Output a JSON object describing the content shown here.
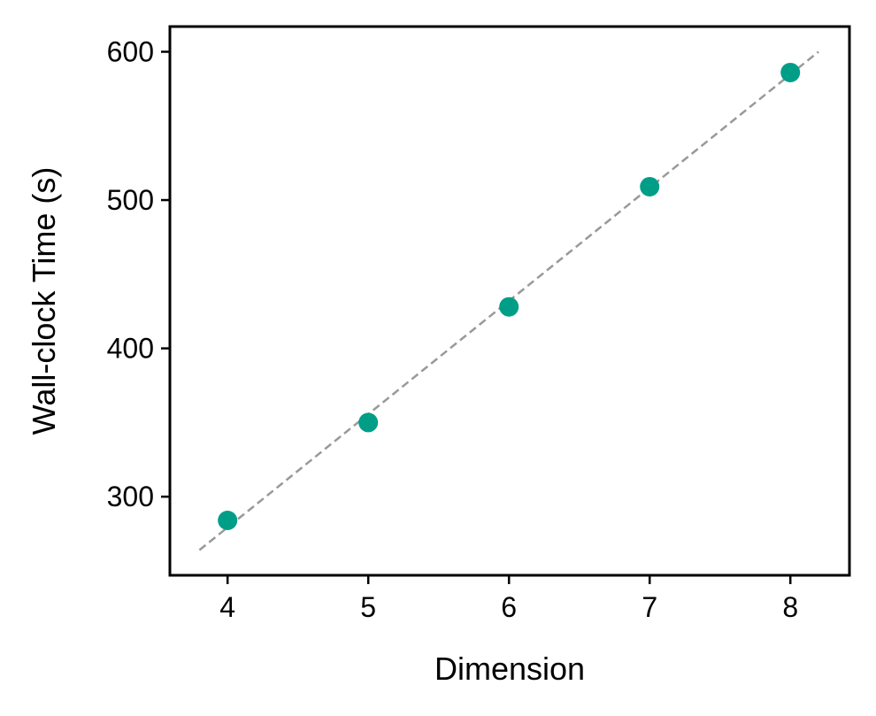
{
  "chart_data": {
    "type": "scatter",
    "title": "",
    "xlabel": "Dimension",
    "ylabel": "Wall-clock Time (s)",
    "xlim": [
      3.59,
      8.42
    ],
    "ylim": [
      247,
      617
    ],
    "xticks": [
      4,
      5,
      6,
      7,
      8
    ],
    "yticks": [
      300,
      400,
      500,
      600
    ],
    "grid": false,
    "series": [
      {
        "marker_color": "#009E87",
        "x": [
          4,
          5,
          6,
          7,
          8
        ],
        "y": [
          284,
          350,
          428,
          509,
          586
        ]
      }
    ],
    "fit_line": {
      "style": "dashed",
      "color": "#999999",
      "x": [
        3.8,
        8.2
      ],
      "y": [
        264,
        600
      ]
    }
  }
}
